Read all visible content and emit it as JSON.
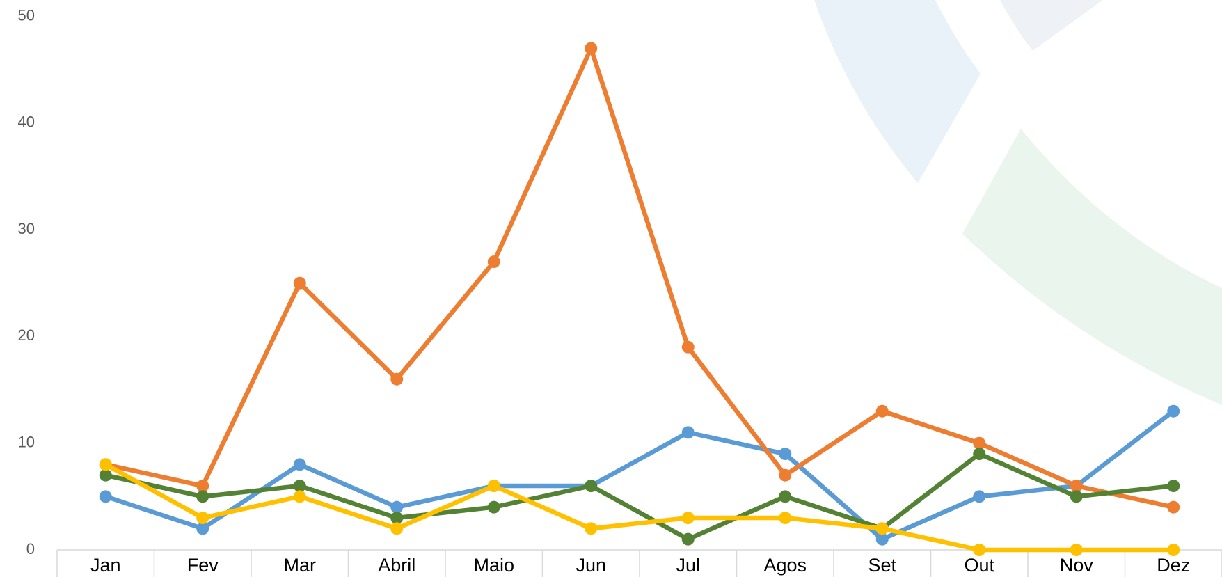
{
  "chart_data": {
    "type": "line",
    "categories": [
      "Jan",
      "Fev",
      "Mar",
      "Abril",
      "Maio",
      "Jun",
      "Jul",
      "Agos",
      "Set",
      "Out",
      "Nov",
      "Dez"
    ],
    "series": [
      {
        "color": "#5b9bd5",
        "values": [
          5,
          2,
          8,
          4,
          6,
          6,
          11,
          9,
          1,
          5,
          6,
          13
        ]
      },
      {
        "color": "#ed7d31",
        "values": [
          8,
          6,
          25,
          16,
          27,
          47,
          19,
          7,
          13,
          10,
          6,
          4
        ]
      },
      {
        "color": "#548235",
        "values": [
          7,
          5,
          6,
          3,
          4,
          6,
          1,
          5,
          2,
          9,
          5,
          6
        ]
      },
      {
        "color": "#ffc000",
        "values": [
          8,
          3,
          5,
          2,
          6,
          2,
          3,
          3,
          2,
          0,
          0,
          0
        ]
      }
    ],
    "ylim": [
      0,
      50
    ],
    "yticks": [
      0,
      10,
      20,
      30,
      40,
      50
    ],
    "grid": false
  }
}
